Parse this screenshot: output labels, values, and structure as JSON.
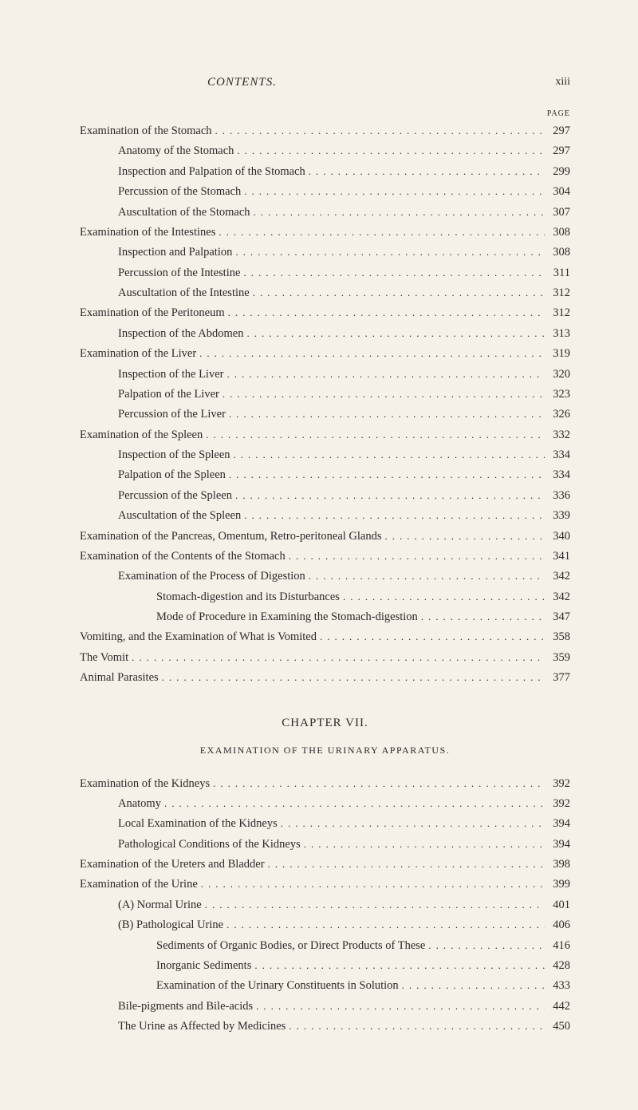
{
  "header": {
    "title": "CONTENTS.",
    "pageRoman": "xiii",
    "pageLabel": "PAGE"
  },
  "section1": [
    {
      "label": "Examination of the Stomach",
      "page": "297",
      "indent": 0
    },
    {
      "label": "Anatomy of the Stomach",
      "page": "297",
      "indent": 1
    },
    {
      "label": "Inspection and Palpation of the Stomach",
      "page": "299",
      "indent": 1
    },
    {
      "label": "Percussion of the Stomach",
      "page": "304",
      "indent": 1
    },
    {
      "label": "Auscultation of the Stomach",
      "page": "307",
      "indent": 1
    },
    {
      "label": "Examination of the Intestines",
      "page": "308",
      "indent": 0
    },
    {
      "label": "Inspection and Palpation",
      "page": "308",
      "indent": 1
    },
    {
      "label": "Percussion of the Intestine",
      "page": "311",
      "indent": 1
    },
    {
      "label": "Auscultation of the Intestine",
      "page": "312",
      "indent": 1
    },
    {
      "label": "Examination of the Peritoneum",
      "page": "312",
      "indent": 0
    },
    {
      "label": "Inspection of the Abdomen",
      "page": "313",
      "indent": 1
    },
    {
      "label": "Examination of the Liver",
      "page": "319",
      "indent": 0
    },
    {
      "label": "Inspection of the Liver",
      "page": "320",
      "indent": 1
    },
    {
      "label": "Palpation of the Liver",
      "page": "323",
      "indent": 1
    },
    {
      "label": "Percussion of the Liver",
      "page": "326",
      "indent": 1
    },
    {
      "label": "Examination of the Spleen",
      "page": "332",
      "indent": 0
    },
    {
      "label": "Inspection of the Spleen",
      "page": "334",
      "indent": 1
    },
    {
      "label": "Palpation of the Spleen",
      "page": "334",
      "indent": 1
    },
    {
      "label": "Percussion of the Spleen",
      "page": "336",
      "indent": 1
    },
    {
      "label": "Auscultation of the Spleen",
      "page": "339",
      "indent": 1
    },
    {
      "label": "Examination of the Pancreas, Omentum, Retro-peritoneal Glands",
      "page": "340",
      "indent": 0
    },
    {
      "label": "Examination of the Contents of the Stomach",
      "page": "341",
      "indent": 0
    },
    {
      "label": "Examination of the Process of Digestion",
      "page": "342",
      "indent": 1
    },
    {
      "label": "Stomach-digestion and its Disturbances",
      "page": "342",
      "indent": 2
    },
    {
      "label": "Mode of Procedure in Examining the Stomach-digestion",
      "page": "347",
      "indent": 2
    },
    {
      "label": "Vomiting, and the Examination of What is Vomited",
      "page": "358",
      "indent": 0
    },
    {
      "label": "The Vomit",
      "page": "359",
      "indent": 0
    },
    {
      "label": "Animal Parasites",
      "page": "377",
      "indent": 0
    }
  ],
  "chapter": {
    "heading": "CHAPTER VII.",
    "subtitle": "EXAMINATION OF THE URINARY APPARATUS."
  },
  "section2": [
    {
      "label": "Examination of the Kidneys",
      "page": "392",
      "indent": 0
    },
    {
      "label": "Anatomy",
      "page": "392",
      "indent": 1
    },
    {
      "label": "Local Examination of the Kidneys",
      "page": "394",
      "indent": 1
    },
    {
      "label": "Pathological Conditions of the Kidneys",
      "page": "394",
      "indent": 1
    },
    {
      "label": "Examination of the Ureters and Bladder",
      "page": "398",
      "indent": 0
    },
    {
      "label": "Examination of the Urine",
      "page": "399",
      "indent": 0
    },
    {
      "label": "(A) Normal Urine",
      "page": "401",
      "indent": 1
    },
    {
      "label": "(B) Pathological Urine",
      "page": "406",
      "indent": 1
    },
    {
      "label": "Sediments of Organic Bodies, or Direct Products of These",
      "page": "416",
      "indent": 2
    },
    {
      "label": "Inorganic Sediments",
      "page": "428",
      "indent": 2
    },
    {
      "label": "Examination of the Urinary Constituents in Solution",
      "page": "433",
      "indent": 2
    },
    {
      "label": "Bile-pigments and Bile-acids",
      "page": "442",
      "indent": 1
    },
    {
      "label": "The Urine as Affected by Medicines",
      "page": "450",
      "indent": 1
    }
  ]
}
